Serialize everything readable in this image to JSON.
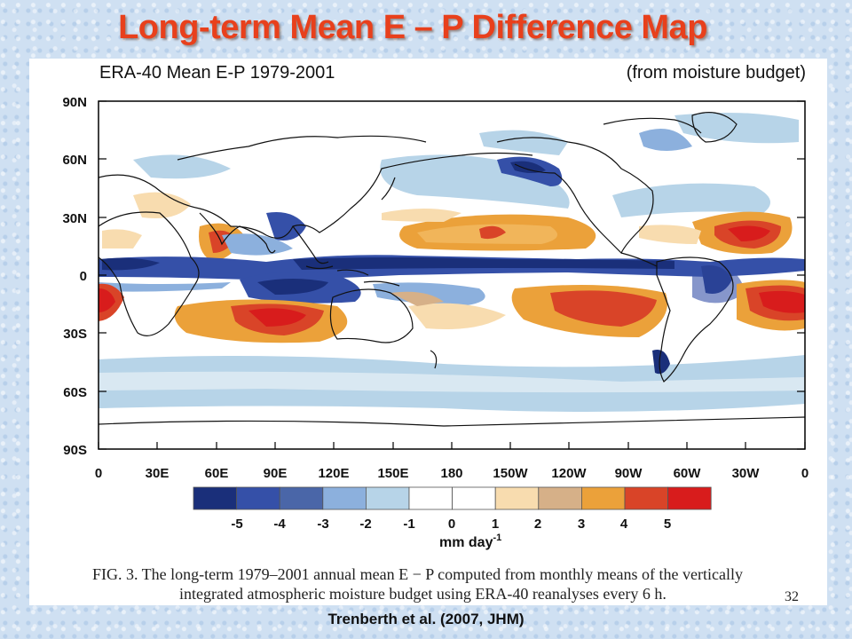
{
  "slide": {
    "title": "Long-term Mean E – P Difference Map",
    "credit": "Trenberth et al. (2007, JHM)",
    "page_number": "32"
  },
  "figure": {
    "title": "ERA-40 Mean E-P 1979-2001",
    "subtitle": "(from moisture budget)",
    "caption_line1": "FIG. 3. The long-term 1979–2001 annual mean E − P computed from monthly means of the vertically",
    "caption_line2": "integrated atmospheric moisture budget using ERA-40 reanalyses every 6 h."
  },
  "map": {
    "lat_labels": [
      "90N",
      "60N",
      "30N",
      "0",
      "30S",
      "60S",
      "90S"
    ],
    "lon_labels": [
      "0",
      "30E",
      "60E",
      "90E",
      "120E",
      "150E",
      "180",
      "150W",
      "120W",
      "90W",
      "60W",
      "30W",
      "0"
    ]
  },
  "colorbar": {
    "tick_labels": [
      "-5",
      "-4",
      "-3",
      "-2",
      "-1",
      "0",
      "1",
      "2",
      "3",
      "4",
      "5"
    ],
    "units": "mm day",
    "units_exp": "-1",
    "colors": [
      "#1a2f7a",
      "#3550a8",
      "#4a66a8",
      "#8cb0dd",
      "#b7d4e8",
      "#ffffff",
      "#ffffff",
      "#f8dcaf",
      "#d6b088",
      "#eba13a",
      "#d94428",
      "#d81c1c"
    ]
  }
}
